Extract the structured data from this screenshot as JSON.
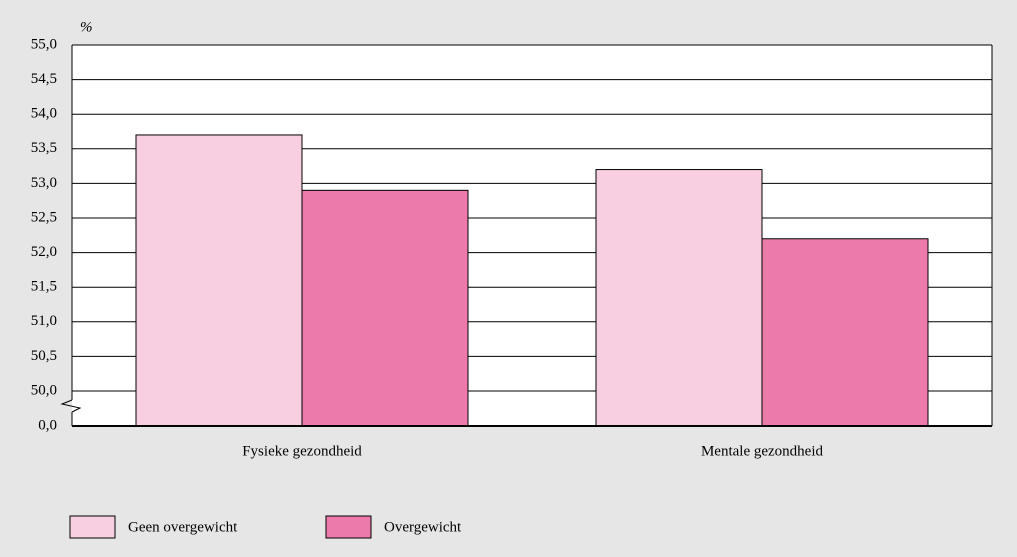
{
  "chart_data": {
    "type": "bar",
    "y_unit_label": "%",
    "categories": [
      "Fysieke gezondheid",
      "Mentale gezondheid"
    ],
    "series": [
      {
        "name": "Geen overgewicht",
        "color": "#f7cfe0",
        "values": [
          53.7,
          53.2
        ]
      },
      {
        "name": "Overgewicht",
        "color": "#ec7bab",
        "values": [
          52.9,
          52.2
        ]
      }
    ],
    "ylim": [
      0,
      55
    ],
    "axis_break": [
      0,
      50
    ],
    "yticks": [
      {
        "value": 0,
        "label": "0,0"
      },
      {
        "value": 50,
        "label": "50,0"
      },
      {
        "value": 50.5,
        "label": "50,5"
      },
      {
        "value": 51,
        "label": "51,0"
      },
      {
        "value": 51.5,
        "label": "51,5"
      },
      {
        "value": 52,
        "label": "52,0"
      },
      {
        "value": 52.5,
        "label": "52,5"
      },
      {
        "value": 53,
        "label": "53,0"
      },
      {
        "value": 53.5,
        "label": "53,5"
      },
      {
        "value": 54,
        "label": "54,0"
      },
      {
        "value": 54.5,
        "label": "54,5"
      },
      {
        "value": 55,
        "label": "55,0"
      }
    ],
    "grid": true
  }
}
